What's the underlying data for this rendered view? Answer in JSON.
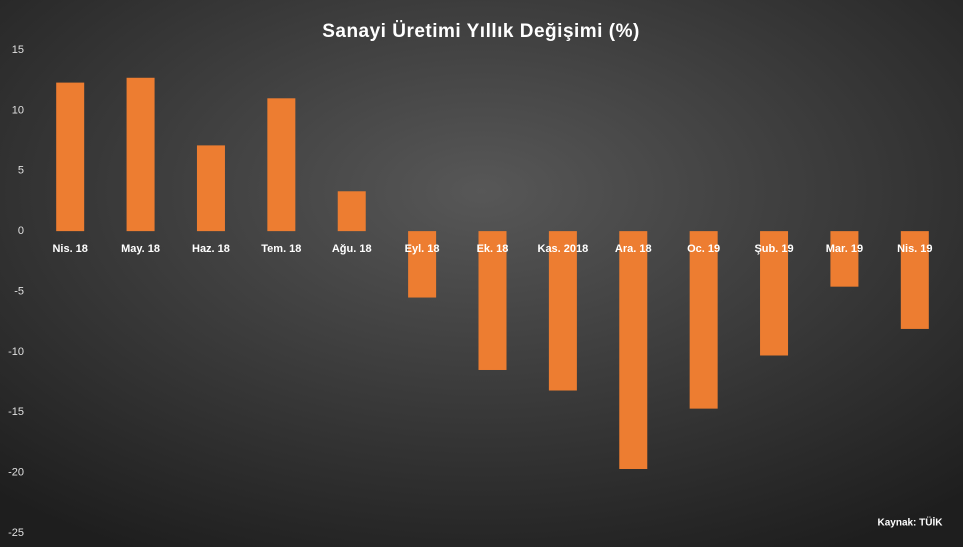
{
  "chart_data": {
    "type": "bar",
    "title": "Sanayi Üretimi Yıllık Değişimi (%)",
    "categories": [
      "Nis. 18",
      "May. 18",
      "Haz. 18",
      "Tem. 18",
      "Ağu. 18",
      "Eyl. 18",
      "Ek. 18",
      "Kas. 2018",
      "Ara. 18",
      "Oc. 19",
      "Şub. 19",
      "Mar. 19",
      "Nis. 19"
    ],
    "values": [
      12.3,
      12.7,
      7.1,
      11.0,
      3.3,
      -5.5,
      -11.5,
      -13.2,
      -19.7,
      -14.7,
      -10.3,
      -4.6,
      -8.1
    ],
    "color": "#ed7d31",
    "ylim": [
      -25,
      15
    ],
    "yticks": [
      -25,
      -20,
      -15,
      -10,
      -5,
      0,
      5,
      10,
      15
    ],
    "grid": false,
    "annotation": "Kaynak: TÜİK"
  }
}
